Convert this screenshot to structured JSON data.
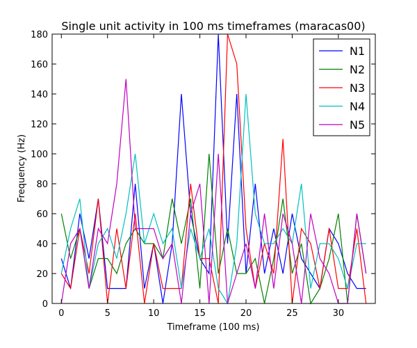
{
  "chart_data": {
    "type": "line",
    "title": "Single unit activity in 100 ms timeframes (maracas00)",
    "xlabel": "Timeframe (100 ms)",
    "ylabel": "Frequency (Hz)",
    "xlim": [
      -1,
      34
    ],
    "ylim": [
      0,
      180
    ],
    "xticks": [
      0,
      5,
      10,
      15,
      20,
      25,
      30
    ],
    "yticks": [
      0,
      20,
      40,
      60,
      80,
      100,
      120,
      140,
      160,
      180
    ],
    "grid": false,
    "legend_position": "top-right",
    "x": [
      0,
      1,
      2,
      3,
      4,
      5,
      6,
      7,
      8,
      9,
      10,
      11,
      12,
      13,
      14,
      15,
      16,
      17,
      18,
      19,
      20,
      21,
      22,
      23,
      24,
      25,
      26,
      27,
      28,
      29,
      30,
      31,
      32,
      33
    ],
    "series": [
      {
        "name": "N1",
        "color": "#0000ff",
        "values": [
          30,
          10,
          60,
          30,
          70,
          10,
          10,
          10,
          80,
          10,
          40,
          0,
          40,
          140,
          60,
          30,
          20,
          180,
          40,
          140,
          20,
          80,
          20,
          50,
          20,
          60,
          30,
          20,
          10,
          50,
          40,
          20,
          10,
          10
        ]
      },
      {
        "name": "N2",
        "color": "#008000",
        "values": [
          60,
          30,
          50,
          10,
          30,
          30,
          20,
          40,
          50,
          40,
          40,
          30,
          70,
          40,
          70,
          10,
          100,
          20,
          50,
          20,
          20,
          30,
          0,
          30,
          70,
          20,
          40,
          0,
          10,
          30,
          60,
          0,
          60,
          20
        ]
      },
      {
        "name": "N3",
        "color": "#ff0000",
        "values": [
          20,
          10,
          50,
          20,
          70,
          0,
          50,
          10,
          60,
          0,
          40,
          10,
          10,
          10,
          80,
          30,
          30,
          0,
          180,
          160,
          50,
          10,
          40,
          20,
          110,
          0,
          50,
          40,
          10,
          50,
          10,
          10,
          50,
          0
        ]
      },
      {
        "name": "N4",
        "color": "#00bfbf",
        "values": [
          20,
          50,
          70,
          10,
          40,
          50,
          30,
          60,
          100,
          40,
          60,
          40,
          50,
          10,
          50,
          30,
          50,
          10,
          0,
          40,
          140,
          60,
          40,
          40,
          50,
          40,
          80,
          10,
          40,
          40,
          30,
          10,
          40,
          40
        ]
      },
      {
        "name": "N5",
        "color": "#bf00bf",
        "values": [
          0,
          40,
          50,
          10,
          50,
          40,
          80,
          150,
          50,
          50,
          50,
          30,
          40,
          0,
          60,
          80,
          0,
          100,
          0,
          20,
          40,
          10,
          60,
          10,
          60,
          40,
          0,
          60,
          30,
          20,
          0,
          0,
          60,
          20
        ]
      }
    ]
  }
}
